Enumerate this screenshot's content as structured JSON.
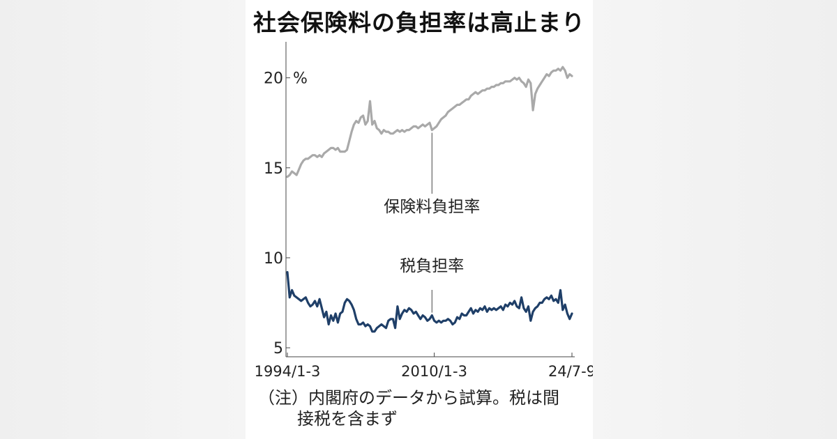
{
  "title": "社会保険料の負担率は高止まり",
  "chart_data": {
    "type": "line",
    "unit": "%",
    "ylim": [
      4.5,
      22
    ],
    "yticks": [
      5,
      10,
      15,
      20
    ],
    "xtick_labels": [
      "1994/1-3",
      "2010/1-3",
      "24/7-9"
    ],
    "x_start": "1994/1-3",
    "x_end": "24/7-9",
    "grid": false,
    "series": [
      {
        "name": "保険料負担率",
        "color": "#a9a9a9",
        "label_anchor_index": 63,
        "values": [
          14.5,
          14.6,
          14.8,
          14.7,
          14.6,
          14.9,
          15.2,
          15.4,
          15.5,
          15.5,
          15.6,
          15.7,
          15.7,
          15.6,
          15.7,
          15.6,
          15.8,
          15.9,
          16.0,
          16.1,
          16.1,
          16.0,
          16.1,
          15.9,
          15.9,
          15.9,
          16.0,
          16.5,
          17.0,
          17.4,
          17.6,
          17.5,
          17.8,
          17.9,
          17.4,
          17.6,
          18.7,
          17.4,
          17.6,
          17.2,
          17.1,
          16.9,
          17.1,
          17.0,
          17.0,
          16.9,
          16.9,
          17.0,
          17.1,
          17.0,
          17.1,
          17.0,
          17.1,
          17.1,
          17.2,
          17.3,
          17.3,
          17.2,
          17.3,
          17.4,
          17.3,
          17.4,
          17.5,
          17.1,
          17.2,
          17.3,
          17.5,
          17.7,
          17.8,
          17.9,
          18.1,
          18.2,
          18.3,
          18.4,
          18.5,
          18.5,
          18.6,
          18.7,
          18.8,
          18.8,
          19.0,
          19.1,
          19.2,
          19.1,
          19.2,
          19.3,
          19.3,
          19.4,
          19.4,
          19.5,
          19.5,
          19.6,
          19.6,
          19.7,
          19.7,
          19.8,
          19.8,
          19.8,
          19.9,
          20.0,
          19.9,
          20.0,
          19.8,
          19.7,
          19.5,
          19.9,
          19.7,
          18.2,
          19.1,
          19.4,
          19.6,
          19.8,
          20.0,
          20.2,
          20.1,
          20.3,
          20.4,
          20.4,
          20.5,
          20.4,
          20.6,
          20.4,
          20.0,
          20.2,
          20.1
        ]
      },
      {
        "name": "税負担率",
        "color": "#1f3f68",
        "label_anchor_index": 63,
        "values": [
          9.2,
          7.8,
          8.2,
          7.9,
          7.8,
          7.7,
          7.6,
          7.7,
          7.8,
          7.5,
          7.3,
          7.4,
          7.6,
          7.3,
          7.7,
          7.2,
          6.7,
          7.0,
          6.3,
          6.8,
          6.5,
          6.9,
          6.4,
          6.9,
          7.0,
          7.5,
          7.7,
          7.6,
          7.4,
          7.1,
          6.6,
          6.3,
          6.3,
          6.4,
          6.2,
          6.3,
          6.2,
          5.9,
          5.9,
          6.1,
          6.2,
          6.3,
          6.2,
          6.1,
          6.5,
          6.6,
          6.6,
          6.1,
          7.3,
          6.6,
          6.9,
          7.1,
          7.0,
          7.2,
          7.1,
          6.9,
          7.0,
          6.8,
          6.6,
          6.8,
          6.7,
          6.5,
          6.6,
          6.8,
          6.5,
          6.4,
          6.5,
          6.4,
          6.5,
          6.5,
          6.6,
          6.5,
          6.3,
          6.4,
          6.7,
          6.6,
          6.9,
          6.8,
          6.8,
          7.0,
          7.2,
          6.9,
          7.1,
          7.0,
          7.2,
          7.1,
          7.3,
          7.0,
          7.2,
          7.1,
          7.2,
          7.1,
          7.2,
          7.3,
          7.1,
          7.4,
          7.3,
          7.5,
          7.4,
          7.6,
          7.3,
          7.2,
          7.8,
          7.2,
          7.0,
          7.3,
          6.5,
          7.0,
          7.2,
          7.3,
          7.5,
          7.5,
          7.7,
          7.8,
          7.7,
          7.9,
          7.6,
          7.7,
          7.5,
          8.2,
          7.1,
          7.4,
          6.9,
          6.6,
          6.9
        ]
      }
    ]
  },
  "note": {
    "line1": "（注）内閣府のデータから試算。税は間",
    "line2": "接税を含まず"
  }
}
